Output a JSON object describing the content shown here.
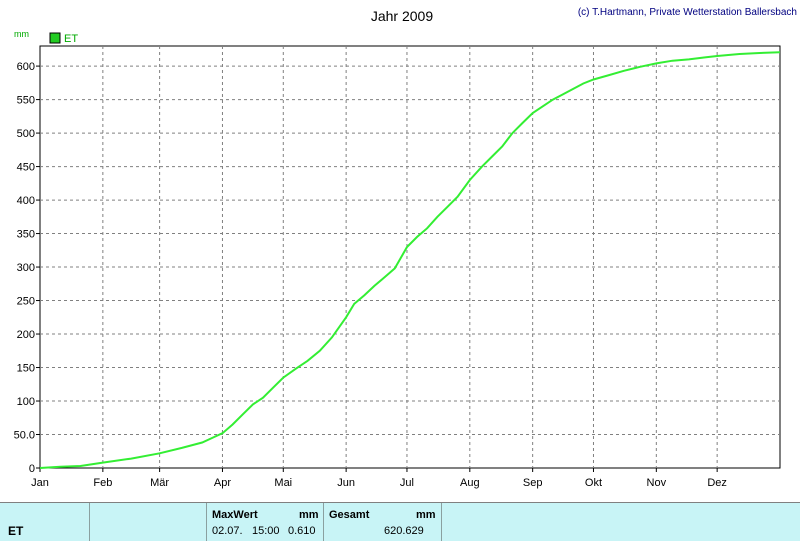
{
  "title": "Jahr 2009",
  "copyright": "(c) T.Hartmann, Private Wetterstation Ballersbach",
  "colors": {
    "line": "#33ee33",
    "legend_box": "#22cc22",
    "copyright": "#000080",
    "axis_text": "#000000",
    "unit_text": "#00aa00",
    "panel_bg": "#c8f4f6"
  },
  "chart_data": {
    "type": "line",
    "title": "Jahr 2009",
    "ylabel": "mm",
    "xlabel": "",
    "ylim": [
      0,
      630
    ],
    "xlim": [
      0,
      365
    ],
    "grid": true,
    "legend_position": "top-left",
    "month_ticks": [
      {
        "day": 0,
        "label": "Jan"
      },
      {
        "day": 31,
        "label": "Feb"
      },
      {
        "day": 59,
        "label": "Mär"
      },
      {
        "day": 90,
        "label": "Apr"
      },
      {
        "day": 120,
        "label": "Mai"
      },
      {
        "day": 151,
        "label": "Jun"
      },
      {
        "day": 181,
        "label": "Jul"
      },
      {
        "day": 212,
        "label": "Aug"
      },
      {
        "day": 243,
        "label": "Sep"
      },
      {
        "day": 273,
        "label": "Okt"
      },
      {
        "day": 304,
        "label": "Nov"
      },
      {
        "day": 334,
        "label": "Dez"
      }
    ],
    "y_ticks": [
      {
        "value": 0,
        "label": "0"
      },
      {
        "value": 50,
        "label": "50.0"
      },
      {
        "value": 100,
        "label": "100"
      },
      {
        "value": 150,
        "label": "150"
      },
      {
        "value": 200,
        "label": "200"
      },
      {
        "value": 250,
        "label": "250"
      },
      {
        "value": 300,
        "label": "300"
      },
      {
        "value": 350,
        "label": "350"
      },
      {
        "value": 400,
        "label": "400"
      },
      {
        "value": 450,
        "label": "450"
      },
      {
        "value": 500,
        "label": "500"
      },
      {
        "value": 550,
        "label": "550"
      },
      {
        "value": 600,
        "label": "600"
      }
    ],
    "series": [
      {
        "name": "ET",
        "color": "#33ee33",
        "points": [
          [
            0,
            0
          ],
          [
            10,
            2
          ],
          [
            20,
            3
          ],
          [
            31,
            8
          ],
          [
            45,
            14
          ],
          [
            59,
            22
          ],
          [
            70,
            30
          ],
          [
            80,
            38
          ],
          [
            85,
            45
          ],
          [
            90,
            52
          ],
          [
            95,
            65
          ],
          [
            100,
            80
          ],
          [
            105,
            95
          ],
          [
            110,
            105
          ],
          [
            115,
            120
          ],
          [
            120,
            135
          ],
          [
            126,
            148
          ],
          [
            132,
            160
          ],
          [
            138,
            175
          ],
          [
            144,
            195
          ],
          [
            151,
            225
          ],
          [
            155,
            245
          ],
          [
            160,
            258
          ],
          [
            165,
            272
          ],
          [
            170,
            285
          ],
          [
            175,
            298
          ],
          [
            181,
            330
          ],
          [
            186,
            345
          ],
          [
            191,
            358
          ],
          [
            196,
            375
          ],
          [
            201,
            390
          ],
          [
            206,
            405
          ],
          [
            212,
            430
          ],
          [
            218,
            450
          ],
          [
            223,
            465
          ],
          [
            228,
            480
          ],
          [
            233,
            500
          ],
          [
            238,
            515
          ],
          [
            243,
            530
          ],
          [
            248,
            540
          ],
          [
            253,
            550
          ],
          [
            258,
            558
          ],
          [
            263,
            566
          ],
          [
            268,
            574
          ],
          [
            273,
            580
          ],
          [
            280,
            586
          ],
          [
            288,
            593
          ],
          [
            296,
            599
          ],
          [
            304,
            604
          ],
          [
            312,
            608
          ],
          [
            320,
            610
          ],
          [
            328,
            613
          ],
          [
            334,
            615
          ],
          [
            345,
            618
          ],
          [
            355,
            619.5
          ],
          [
            365,
            620.6
          ]
        ]
      }
    ]
  },
  "legend": {
    "label": "ET"
  },
  "y_unit": "mm",
  "info_panel": {
    "series_name": "ET",
    "maxwert_label": "MaxWert",
    "maxwert_unit": "mm",
    "maxwert_date": "02.07.",
    "maxwert_time": "15:00",
    "maxwert_value": "0.610",
    "gesamt_label": "Gesamt",
    "gesamt_unit": "mm",
    "gesamt_value": "620.629"
  }
}
